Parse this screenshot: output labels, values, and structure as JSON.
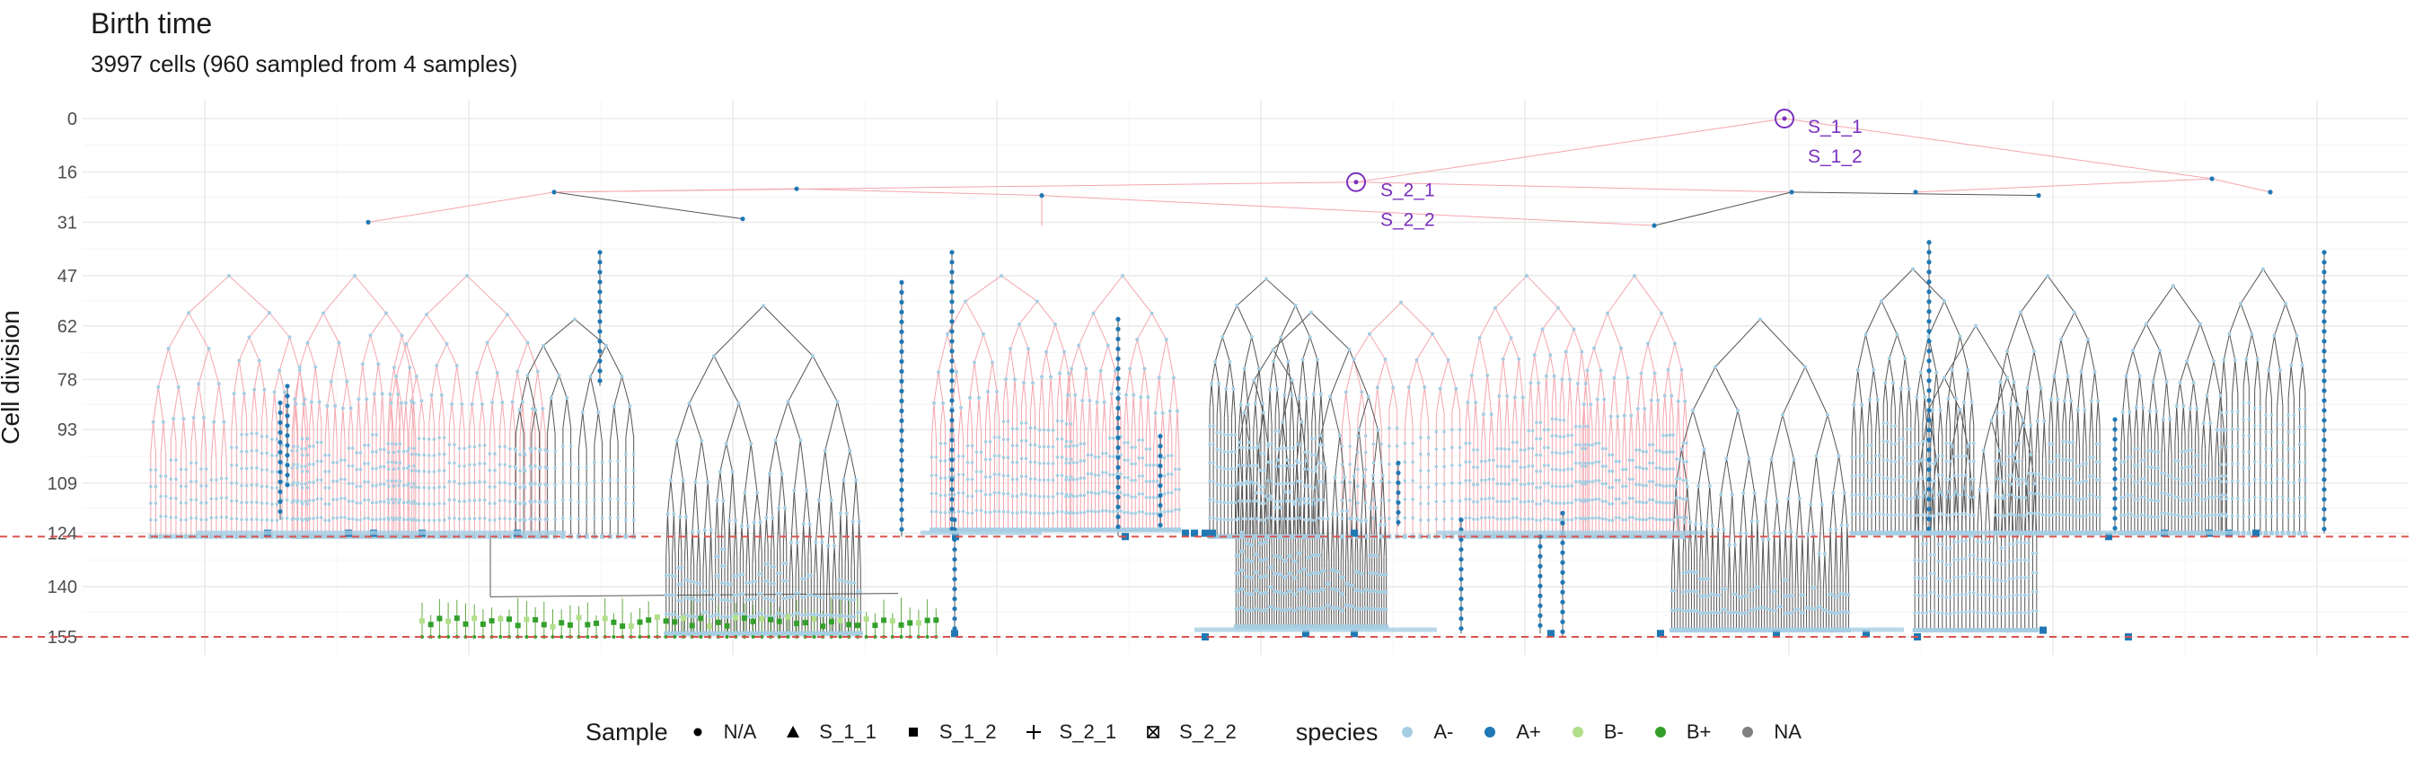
{
  "chart_data": {
    "type": "tree",
    "title": "Birth time",
    "subtitle": "3997 cells (960 sampled from 4 samples)",
    "ylabel": "Cell division",
    "xlabel": "",
    "y_ticks": [
      0,
      16,
      31,
      47,
      62,
      78,
      93,
      109,
      124,
      140,
      155
    ],
    "ylim": [
      0,
      155
    ],
    "y_reversed": true,
    "reference_lines": [
      {
        "y": 125,
        "style": "dashed",
        "color": "#d9534f"
      },
      {
        "y": 155,
        "style": "dashed",
        "color": "#d9534f"
      }
    ],
    "annotations": [
      {
        "text": "S_1_1",
        "attached_to": "root",
        "y": 0
      },
      {
        "text": "S_1_2",
        "attached_to": "root",
        "y": 0
      },
      {
        "text": "S_2_1",
        "attached_to": "second-root",
        "y": 19
      },
      {
        "text": "S_2_2",
        "attached_to": "second-root",
        "y": 19
      }
    ],
    "grid": true,
    "legend_position": "bottom",
    "legend": {
      "sample": {
        "title": "Sample",
        "entries": [
          {
            "label": "N/A",
            "shape": "circle"
          },
          {
            "label": "S_1_1",
            "shape": "triangle"
          },
          {
            "label": "S_1_2",
            "shape": "square"
          },
          {
            "label": "S_2_1",
            "shape": "plus"
          },
          {
            "label": "S_2_2",
            "shape": "boxed-x"
          }
        ]
      },
      "species": {
        "title": "species",
        "entries": [
          {
            "label": "A-",
            "color": "#a6cee3"
          },
          {
            "label": "A+",
            "color": "#1f78b4"
          },
          {
            "label": "B-",
            "color": "#b2df8a"
          },
          {
            "label": "B+",
            "color": "#33a02c"
          },
          {
            "label": "NA",
            "color": "#808080"
          }
        ]
      }
    },
    "edge_colors": {
      "pink": "#f4a6ad",
      "gray": "#555555",
      "green": "#66aa44"
    }
  }
}
